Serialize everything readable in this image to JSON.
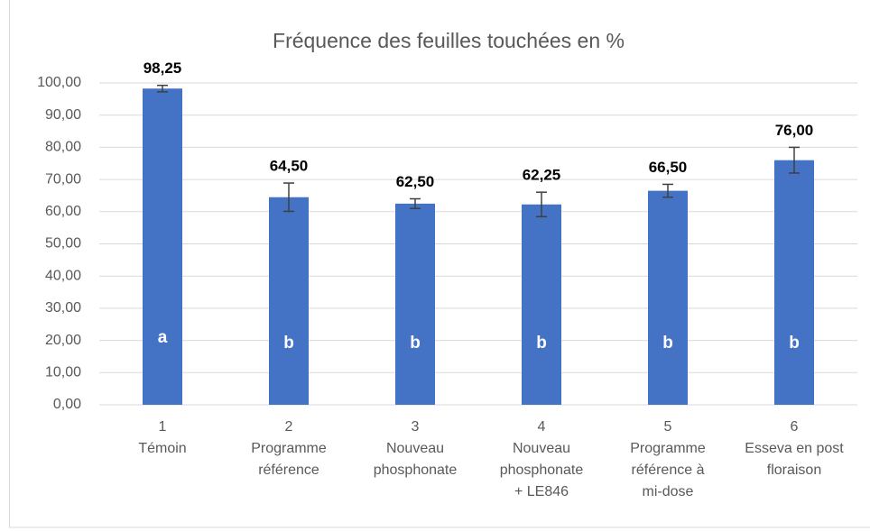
{
  "chart_data": {
    "type": "bar",
    "title": "Fréquence des feuilles touchées en %",
    "categories": [
      [
        "1",
        "Témoin"
      ],
      [
        "2",
        "Programme",
        "référence"
      ],
      [
        "3",
        "Nouveau",
        "phosphonate"
      ],
      [
        "4",
        "Nouveau",
        "phosphonate",
        "+ LE846"
      ],
      [
        "5",
        "Programme",
        "référence à",
        "mi-dose"
      ],
      [
        "6",
        "Esseva en post",
        "floraison"
      ]
    ],
    "values": [
      98.25,
      64.5,
      62.5,
      62.25,
      66.5,
      76
    ],
    "value_labels": [
      "98,25",
      "64,50",
      "62,50",
      "62,25",
      "66,50",
      "76,00"
    ],
    "errors": [
      1,
      4.4,
      1.5,
      3.8,
      2,
      4
    ],
    "group_letters": [
      "a",
      "b",
      "b",
      "b",
      "b",
      "b"
    ],
    "color": "#4472c4",
    "ylim": [
      0,
      100
    ],
    "yticks": [
      {
        "value": 0,
        "label": "0,00"
      },
      {
        "value": 10,
        "label": "10,00"
      },
      {
        "value": 20,
        "label": "20,00"
      },
      {
        "value": 30,
        "label": "30,00"
      },
      {
        "value": 40,
        "label": "40,00"
      },
      {
        "value": 50,
        "label": "50,00"
      },
      {
        "value": 60,
        "label": "60,00"
      },
      {
        "value": 70,
        "label": "70,00"
      },
      {
        "value": 80,
        "label": "80,00"
      },
      {
        "value": 90,
        "label": "90,00"
      },
      {
        "value": 100,
        "label": "100,00"
      }
    ],
    "grid": true
  }
}
